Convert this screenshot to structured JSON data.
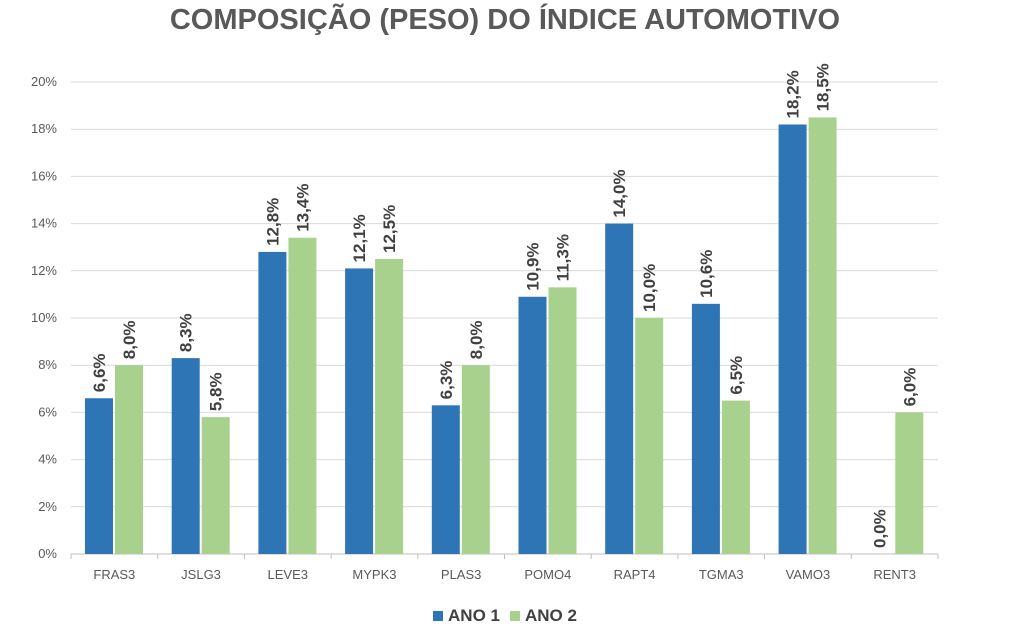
{
  "chart_data": {
    "type": "bar",
    "title": "COMPOSIÇÃO (PESO) DO ÍNDICE AUTOMOTIVO",
    "categories": [
      "FRAS3",
      "JSLG3",
      "LEVE3",
      "MYPK3",
      "PLAS3",
      "POMO4",
      "RAPT4",
      "TGMA3",
      "VAMO3",
      "RENT3"
    ],
    "series": [
      {
        "name": "ANO 1",
        "color": "#2E75B6",
        "values": [
          6.6,
          8.3,
          12.8,
          12.1,
          6.3,
          10.9,
          14.0,
          10.6,
          18.2,
          0.0
        ],
        "labels": [
          "6,6%",
          "8,3%",
          "12,8%",
          "12,1%",
          "6,3%",
          "10,9%",
          "14,0%",
          "10,6%",
          "18,2%",
          "0,0%"
        ]
      },
      {
        "name": "ANO 2",
        "color": "#A9D18E",
        "values": [
          8.0,
          5.8,
          13.4,
          12.5,
          8.0,
          11.3,
          10.0,
          6.5,
          18.5,
          6.0
        ],
        "labels": [
          "8,0%",
          "5,8%",
          "13,4%",
          "12,5%",
          "8,0%",
          "11,3%",
          "10,0%",
          "6,5%",
          "18,5%",
          "6,0%"
        ]
      }
    ],
    "ylim": [
      0,
      20
    ],
    "yticks": [
      0,
      2,
      4,
      6,
      8,
      10,
      12,
      14,
      16,
      18,
      20
    ],
    "ytick_labels": [
      "0%",
      "2%",
      "4%",
      "6%",
      "8%",
      "10%",
      "12%",
      "14%",
      "16%",
      "18%",
      "20%"
    ],
    "xlabel": "",
    "ylabel": "",
    "grid": true,
    "legend_position": "bottom"
  }
}
